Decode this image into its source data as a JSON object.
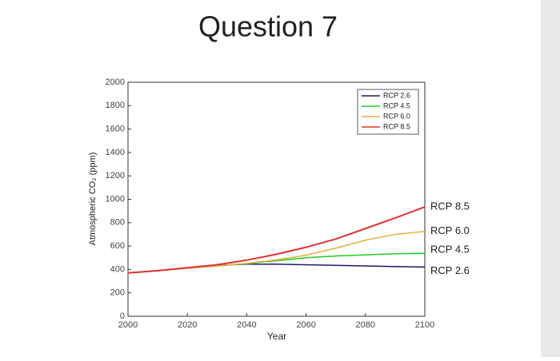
{
  "chart_data": {
    "type": "line",
    "title": "Question 7",
    "xlabel": "Year",
    "ylabel": "Atmospheric CO₂ (ppm)",
    "x": [
      2000,
      2010,
      2020,
      2030,
      2040,
      2050,
      2060,
      2070,
      2080,
      2090,
      2100
    ],
    "series": [
      {
        "name": "RCP 2.6",
        "color": "#1c1c6e",
        "values": [
          370,
          390,
          415,
          435,
          445,
          445,
          440,
          435,
          430,
          425,
          421
        ]
      },
      {
        "name": "RCP 4.5",
        "color": "#22cc22",
        "values": [
          370,
          390,
          410,
          430,
          450,
          475,
          500,
          515,
          525,
          535,
          538
        ]
      },
      {
        "name": "RCP 6.0",
        "color": "#e8b040",
        "values": [
          370,
          390,
          410,
          430,
          452,
          482,
          522,
          582,
          650,
          700,
          725
        ]
      },
      {
        "name": "RCP 8.5",
        "color": "#dd3333",
        "values": [
          370,
          390,
          415,
          440,
          480,
          530,
          590,
          660,
          750,
          840,
          935
        ]
      }
    ],
    "xlim": [
      2000,
      2100
    ],
    "xticks": [
      2000,
      2020,
      2040,
      2060,
      2080,
      2100
    ],
    "ylim": [
      0,
      2000
    ],
    "yticks": [
      0,
      200,
      400,
      600,
      800,
      1000,
      1200,
      1400,
      1600,
      1800,
      2000
    ],
    "legend": "upper right",
    "grid": false
  }
}
